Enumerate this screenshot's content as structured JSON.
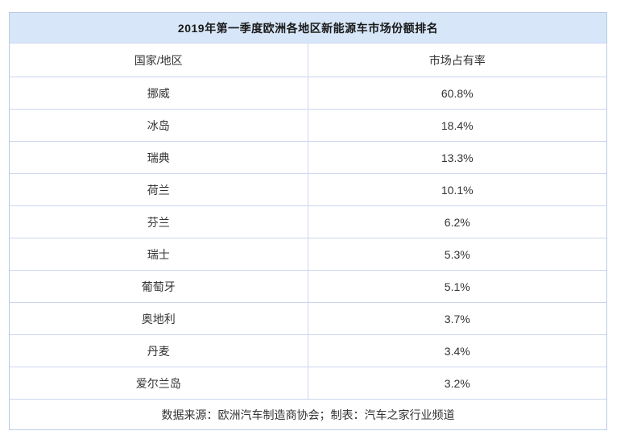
{
  "table": {
    "title": "2019年第一季度欧洲各地区新能源车市场份额排名",
    "columns": [
      "国家/地区",
      "市场占有率"
    ],
    "rows": [
      {
        "country": "挪威",
        "share": "60.8%"
      },
      {
        "country": "冰岛",
        "share": "18.4%"
      },
      {
        "country": "瑞典",
        "share": "13.3%"
      },
      {
        "country": "荷兰",
        "share": "10.1%"
      },
      {
        "country": "芬兰",
        "share": "6.2%"
      },
      {
        "country": "瑞士",
        "share": "5.3%"
      },
      {
        "country": "葡萄牙",
        "share": "5.1%"
      },
      {
        "country": "奥地利",
        "share": "3.7%"
      },
      {
        "country": "丹麦",
        "share": "3.4%"
      },
      {
        "country": "爱尔兰岛",
        "share": "3.2%"
      }
    ],
    "footer": "数据来源：欧洲汽车制造商协会；制表：汽车之家行业频道"
  },
  "colors": {
    "header_bg": "#d7e6f8",
    "border": "#ccd7ee",
    "outer_border": "#b9cbe7",
    "text": "#333333",
    "title_text": "#1a1a1a",
    "page_bg": "#ffffff"
  },
  "chart_data": {
    "type": "table",
    "title": "2019年第一季度欧洲各地区新能源车市场份额排名",
    "columns": [
      "国家/地区",
      "市场占有率"
    ],
    "categories": [
      "挪威",
      "冰岛",
      "瑞典",
      "荷兰",
      "芬兰",
      "瑞士",
      "葡萄牙",
      "奥地利",
      "丹麦",
      "爱尔兰岛"
    ],
    "values": [
      60.8,
      18.4,
      13.3,
      10.1,
      6.2,
      5.3,
      5.1,
      3.7,
      3.4,
      3.2
    ],
    "unit": "%",
    "source_note": "数据来源：欧洲汽车制造商协会；制表：汽车之家行业频道"
  }
}
